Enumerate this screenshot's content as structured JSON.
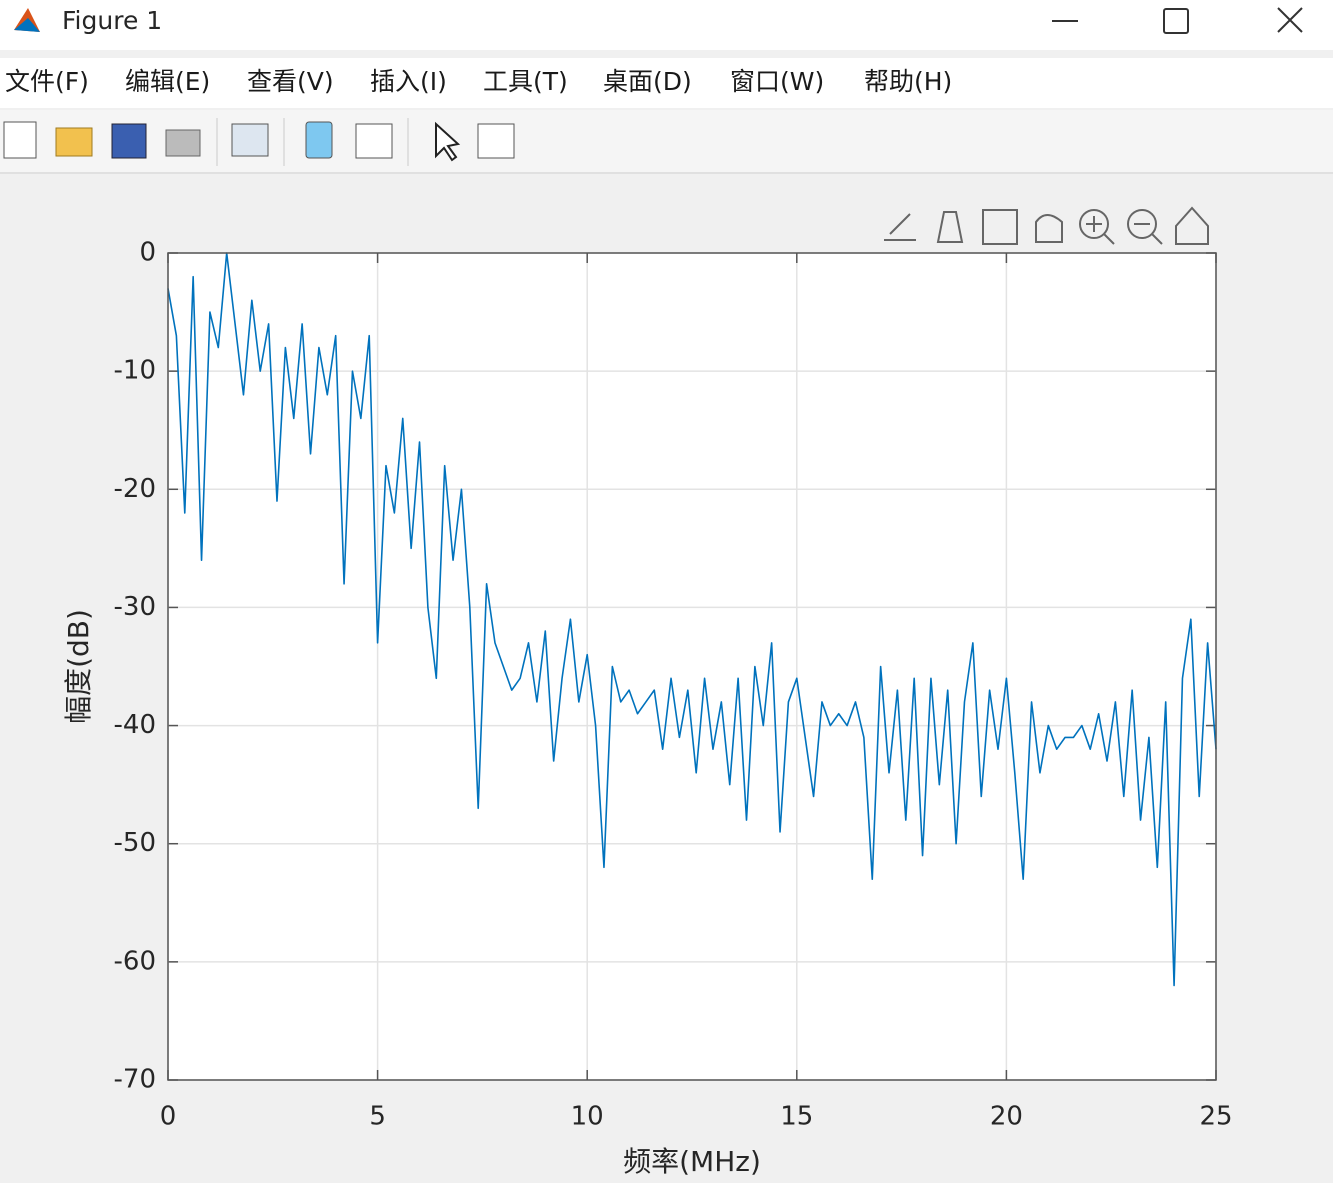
{
  "window": {
    "title": "Figure 1"
  },
  "menu": [
    "文件(F)",
    "编辑(E)",
    "查看(V)",
    "插入(I)",
    "工具(T)",
    "桌面(D)",
    "窗口(W)",
    "帮助(H)"
  ],
  "chart_data": {
    "type": "line",
    "xlabel": "频率(MHz)",
    "ylabel": "幅度(dB)",
    "x": [
      0,
      0.2,
      0.4,
      0.6,
      0.8,
      1,
      1.2,
      1.4,
      1.6,
      1.8,
      2,
      2.2,
      2.4,
      2.6,
      2.8,
      3,
      3.2,
      3.4,
      3.6,
      3.8,
      4,
      4.2,
      4.4,
      4.6,
      4.8,
      5,
      5.2,
      5.4,
      5.6,
      5.8,
      6,
      6.2,
      6.4,
      6.6,
      6.8,
      7,
      7.2,
      7.4,
      7.6,
      7.8,
      8,
      8.2,
      8.4,
      8.6,
      8.8,
      9,
      9.2,
      9.4,
      9.6,
      9.8,
      10,
      10.2,
      10.4,
      10.6,
      10.8,
      11,
      11.2,
      11.4,
      11.6,
      11.8,
      12,
      12.2,
      12.4,
      12.6,
      12.8,
      13,
      13.2,
      13.4,
      13.6,
      13.8,
      14,
      14.2,
      14.4,
      14.6,
      14.8,
      15,
      15.2,
      15.4,
      15.6,
      15.8,
      16,
      16.2,
      16.4,
      16.6,
      16.8,
      17,
      17.2,
      17.4,
      17.6,
      17.8,
      18,
      18.2,
      18.4,
      18.6,
      18.8,
      19,
      19.2,
      19.4,
      19.6,
      19.8,
      20,
      20.2,
      20.4,
      20.6,
      20.8,
      21,
      21.2,
      21.4,
      21.6,
      21.8,
      22,
      22.2,
      22.4,
      22.6,
      22.8,
      23,
      23.2,
      23.4,
      23.6,
      23.8,
      24,
      24.2,
      24.4,
      24.6,
      24.8,
      25
    ],
    "values": [
      -3,
      -7,
      -22,
      -2,
      -26,
      -5,
      -8,
      0,
      -6,
      -12,
      -4,
      -10,
      -6,
      -21,
      -8,
      -14,
      -6,
      -17,
      -8,
      -12,
      -7,
      -28,
      -10,
      -14,
      -7,
      -33,
      -18,
      -22,
      -14,
      -25,
      -16,
      -30,
      -36,
      -18,
      -26,
      -20,
      -30,
      -47,
      -28,
      -33,
      -35,
      -37,
      -36,
      -33,
      -38,
      -32,
      -43,
      -36,
      -31,
      -38,
      -34,
      -40,
      -52,
      -35,
      -38,
      -37,
      -39,
      -38,
      -37,
      -42,
      -36,
      -41,
      -37,
      -44,
      -36,
      -42,
      -38,
      -45,
      -36,
      -48,
      -35,
      -40,
      -33,
      -49,
      -38,
      -36,
      -41,
      -46,
      -38,
      -40,
      -39,
      -40,
      -38,
      -41,
      -53,
      -35,
      -44,
      -37,
      -48,
      -36,
      -51,
      -36,
      -45,
      -37,
      -50,
      -38,
      -33,
      -46,
      -37,
      -42,
      -36,
      -44,
      -53,
      -38,
      -44,
      -40,
      -42,
      -41,
      -41,
      -40,
      -42,
      -39,
      -43,
      -38,
      -46,
      -37,
      -48,
      -41,
      -52,
      -38,
      -62,
      -36,
      -31,
      -46,
      -33,
      -42
    ],
    "color": "#0072bd",
    "xlim": [
      0,
      25
    ],
    "ylim": [
      -70,
      0
    ],
    "xticks": [
      0,
      5,
      10,
      15,
      20,
      25
    ],
    "yticks": [
      -70,
      -60,
      -50,
      -40,
      -30,
      -20,
      -10,
      0
    ],
    "grid": true
  }
}
